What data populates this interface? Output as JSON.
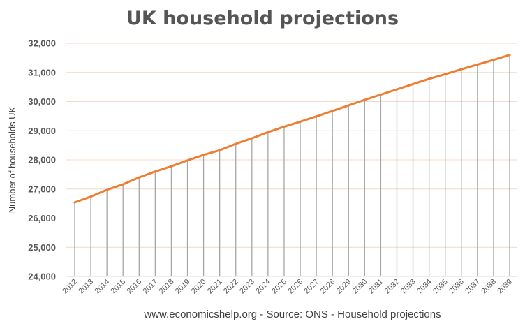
{
  "chart_data": {
    "type": "line",
    "title": "UK household projections",
    "xlabel": "",
    "ylabel": "Number of households UK",
    "footer": "www.economicshelp.org - Source: ONS - Household projections",
    "ylim": [
      24000,
      32000
    ],
    "yticks": [
      "24,000",
      "25,000",
      "26,000",
      "27,000",
      "28,000",
      "29,000",
      "30,000",
      "31,000",
      "32,000"
    ],
    "categories": [
      "2012",
      "2013",
      "2014",
      "2015",
      "2016",
      "2017",
      "2018",
      "2019",
      "2020",
      "2021",
      "2022",
      "2023",
      "2024",
      "2025",
      "2026",
      "2027",
      "2028",
      "2029",
      "2030",
      "2031",
      "2032",
      "2033",
      "2034",
      "2035",
      "2036",
      "2037",
      "2038",
      "2039"
    ],
    "values": [
      26540,
      26740,
      26970,
      27160,
      27400,
      27600,
      27780,
      27980,
      28170,
      28330,
      28550,
      28740,
      28950,
      29140,
      29310,
      29490,
      29680,
      29870,
      30060,
      30240,
      30420,
      30600,
      30780,
      30940,
      31110,
      31270,
      31430,
      31600
    ],
    "drop_lines": true,
    "grid": true,
    "line_color": "#ED7D31",
    "drop_line_color": "#A6A6A6",
    "grid_color": "#F2D9C9"
  }
}
